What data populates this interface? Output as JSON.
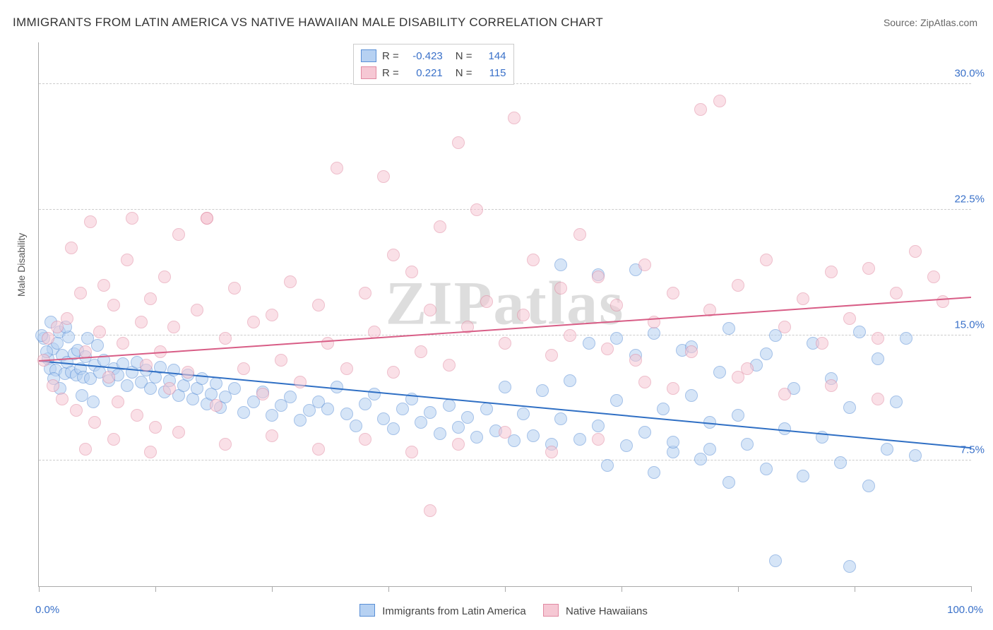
{
  "title": "IMMIGRANTS FROM LATIN AMERICA VS NATIVE HAWAIIAN MALE DISABILITY CORRELATION CHART",
  "source": "Source: ZipAtlas.com",
  "watermark": "ZIPatlas",
  "ylabel": "Male Disability",
  "chart": {
    "type": "scatter",
    "xlim": [
      0,
      100
    ],
    "ylim": [
      0,
      32.5
    ],
    "yticks": [
      7.5,
      15.0,
      22.5,
      30.0
    ],
    "ytick_labels": [
      "7.5%",
      "15.0%",
      "22.5%",
      "30.0%"
    ],
    "xticks": [
      0,
      12.5,
      25,
      37.5,
      50,
      62.5,
      75,
      87.5,
      100
    ],
    "xlim_labels": {
      "left": "0.0%",
      "right": "100.0%"
    },
    "background_color": "#ffffff",
    "grid_color": "#cccccc",
    "axis_color": "#aaaaaa",
    "label_color": "#3a71c9",
    "marker_radius": 8,
    "marker_opacity": 0.55,
    "marker_stroke_width": 1.2
  },
  "series": [
    {
      "name": "Immigrants from Latin America",
      "fill": "#b6d1f2",
      "stroke": "#5a8fd6",
      "trend_color": "#2f6fc4",
      "R": "-0.423",
      "N": "144",
      "trend": {
        "x1": 0,
        "y1": 13.4,
        "x2": 100,
        "y2": 8.2
      },
      "points": [
        [
          0.5,
          14.8
        ],
        [
          1,
          13.6
        ],
        [
          1.2,
          13.0
        ],
        [
          1.5,
          14.2
        ],
        [
          1.8,
          12.9
        ],
        [
          2,
          14.5
        ],
        [
          2.2,
          15.2
        ],
        [
          2.5,
          13.8
        ],
        [
          2.8,
          12.7
        ],
        [
          3,
          13.4
        ],
        [
          3.2,
          14.9
        ],
        [
          3.5,
          12.8
        ],
        [
          3.8,
          13.9
        ],
        [
          4,
          12.6
        ],
        [
          4.2,
          14.1
        ],
        [
          4.5,
          13.0
        ],
        [
          4.8,
          12.5
        ],
        [
          5,
          13.7
        ],
        [
          5.5,
          12.4
        ],
        [
          6,
          13.2
        ],
        [
          6.5,
          12.8
        ],
        [
          7,
          13.5
        ],
        [
          7.5,
          12.3
        ],
        [
          8,
          13.0
        ],
        [
          8.5,
          12.6
        ],
        [
          9,
          13.3
        ],
        [
          9.5,
          12.0
        ],
        [
          10,
          12.8
        ],
        [
          10.5,
          13.4
        ],
        [
          11,
          12.2
        ],
        [
          11.5,
          12.9
        ],
        [
          12,
          11.8
        ],
        [
          12.5,
          12.5
        ],
        [
          13,
          13.1
        ],
        [
          13.5,
          11.6
        ],
        [
          14,
          12.3
        ],
        [
          14.5,
          12.9
        ],
        [
          15,
          11.4
        ],
        [
          15.5,
          12.0
        ],
        [
          16,
          12.6
        ],
        [
          16.5,
          11.2
        ],
        [
          17,
          11.8
        ],
        [
          17.5,
          12.4
        ],
        [
          18,
          10.9
        ],
        [
          18.5,
          11.5
        ],
        [
          19,
          12.1
        ],
        [
          19.5,
          10.7
        ],
        [
          20,
          11.3
        ],
        [
          21,
          11.8
        ],
        [
          22,
          10.4
        ],
        [
          23,
          11.0
        ],
        [
          24,
          11.6
        ],
        [
          25,
          10.2
        ],
        [
          26,
          10.8
        ],
        [
          27,
          11.3
        ],
        [
          28,
          9.9
        ],
        [
          29,
          10.5
        ],
        [
          30,
          11.0
        ],
        [
          31,
          10.6
        ],
        [
          32,
          11.9
        ],
        [
          33,
          10.3
        ],
        [
          34,
          9.6
        ],
        [
          35,
          10.9
        ],
        [
          36,
          11.5
        ],
        [
          37,
          10.0
        ],
        [
          38,
          9.4
        ],
        [
          39,
          10.6
        ],
        [
          40,
          11.2
        ],
        [
          41,
          9.8
        ],
        [
          42,
          10.4
        ],
        [
          43,
          9.1
        ],
        [
          44,
          10.8
        ],
        [
          45,
          9.5
        ],
        [
          46,
          10.1
        ],
        [
          47,
          8.9
        ],
        [
          48,
          10.6
        ],
        [
          49,
          9.3
        ],
        [
          50,
          11.9
        ],
        [
          51,
          8.7
        ],
        [
          52,
          10.3
        ],
        [
          53,
          9.0
        ],
        [
          54,
          11.7
        ],
        [
          55,
          8.5
        ],
        [
          56,
          10.0
        ],
        [
          57,
          12.3
        ],
        [
          58,
          8.8
        ],
        [
          59,
          14.5
        ],
        [
          60,
          9.6
        ],
        [
          61,
          7.2
        ],
        [
          62,
          11.1
        ],
        [
          63,
          8.4
        ],
        [
          64,
          13.8
        ],
        [
          65,
          9.2
        ],
        [
          66,
          6.8
        ],
        [
          67,
          10.6
        ],
        [
          68,
          8.0
        ],
        [
          69,
          14.1
        ],
        [
          70,
          11.4
        ],
        [
          71,
          7.6
        ],
        [
          72,
          9.8
        ],
        [
          73,
          12.8
        ],
        [
          74,
          6.2
        ],
        [
          75,
          10.2
        ],
        [
          76,
          8.5
        ],
        [
          77,
          13.2
        ],
        [
          78,
          7.0
        ],
        [
          79,
          15.0
        ],
        [
          80,
          9.4
        ],
        [
          81,
          11.8
        ],
        [
          82,
          6.6
        ],
        [
          83,
          14.5
        ],
        [
          84,
          8.9
        ],
        [
          85,
          12.4
        ],
        [
          86,
          7.4
        ],
        [
          87,
          10.7
        ],
        [
          88,
          15.2
        ],
        [
          89,
          6.0
        ],
        [
          90,
          13.6
        ],
        [
          91,
          8.2
        ],
        [
          92,
          11.0
        ],
        [
          93,
          14.8
        ],
        [
          94,
          7.8
        ],
        [
          56,
          19.2
        ],
        [
          60,
          18.6
        ],
        [
          64,
          18.9
        ],
        [
          79,
          1.5
        ],
        [
          87,
          1.2
        ],
        [
          62,
          14.8
        ],
        [
          66,
          15.1
        ],
        [
          70,
          14.3
        ],
        [
          74,
          15.4
        ],
        [
          78,
          13.9
        ],
        [
          68,
          8.6
        ],
        [
          72,
          8.2
        ],
        [
          0.3,
          15.0
        ],
        [
          0.8,
          14.0
        ],
        [
          1.3,
          15.8
        ],
        [
          1.6,
          12.4
        ],
        [
          2.3,
          11.8
        ],
        [
          2.9,
          15.5
        ],
        [
          4.6,
          11.4
        ],
        [
          5.2,
          14.8
        ],
        [
          5.8,
          11.0
        ],
        [
          6.3,
          14.4
        ]
      ]
    },
    {
      "name": "Native Hawaiians",
      "fill": "#f6c8d4",
      "stroke": "#e18aa2",
      "trend_color": "#d85d86",
      "R": "0.221",
      "N": "115",
      "trend": {
        "x1": 0,
        "y1": 13.4,
        "x2": 100,
        "y2": 17.2
      },
      "points": [
        [
          0.5,
          13.5
        ],
        [
          1,
          14.8
        ],
        [
          1.5,
          12.0
        ],
        [
          2,
          15.5
        ],
        [
          2.5,
          11.2
        ],
        [
          3,
          16.0
        ],
        [
          3.5,
          20.2
        ],
        [
          4,
          10.5
        ],
        [
          4.5,
          17.5
        ],
        [
          5,
          14.0
        ],
        [
          5.5,
          21.8
        ],
        [
          6,
          9.8
        ],
        [
          6.5,
          15.2
        ],
        [
          7,
          18.0
        ],
        [
          7.5,
          12.5
        ],
        [
          8,
          16.8
        ],
        [
          8.5,
          11.0
        ],
        [
          9,
          14.5
        ],
        [
          9.5,
          19.5
        ],
        [
          10,
          22.0
        ],
        [
          10.5,
          10.2
        ],
        [
          11,
          15.8
        ],
        [
          11.5,
          13.2
        ],
        [
          12,
          17.2
        ],
        [
          12.5,
          9.5
        ],
        [
          13,
          14.0
        ],
        [
          13.5,
          18.5
        ],
        [
          14,
          11.8
        ],
        [
          14.5,
          15.5
        ],
        [
          15,
          21.0
        ],
        [
          16,
          12.8
        ],
        [
          17,
          16.5
        ],
        [
          18,
          22.0
        ],
        [
          19,
          10.8
        ],
        [
          20,
          14.8
        ],
        [
          21,
          17.8
        ],
        [
          22,
          13.0
        ],
        [
          23,
          15.8
        ],
        [
          24,
          11.5
        ],
        [
          25,
          16.2
        ],
        [
          26,
          13.5
        ],
        [
          27,
          18.2
        ],
        [
          28,
          12.2
        ],
        [
          30,
          16.8
        ],
        [
          31,
          14.5
        ],
        [
          32,
          25.0
        ],
        [
          33,
          13.0
        ],
        [
          35,
          17.5
        ],
        [
          36,
          15.2
        ],
        [
          37,
          24.5
        ],
        [
          38,
          12.8
        ],
        [
          40,
          18.8
        ],
        [
          41,
          14.0
        ],
        [
          42,
          16.5
        ],
        [
          43,
          21.5
        ],
        [
          44,
          13.2
        ],
        [
          45,
          26.5
        ],
        [
          46,
          15.5
        ],
        [
          47,
          22.5
        ],
        [
          48,
          17.0
        ],
        [
          50,
          14.5
        ],
        [
          51,
          28.0
        ],
        [
          52,
          16.2
        ],
        [
          53,
          19.5
        ],
        [
          55,
          13.8
        ],
        [
          56,
          17.8
        ],
        [
          57,
          15.0
        ],
        [
          58,
          21.0
        ],
        [
          60,
          18.5
        ],
        [
          61,
          14.2
        ],
        [
          62,
          16.8
        ],
        [
          64,
          13.5
        ],
        [
          65,
          19.2
        ],
        [
          66,
          15.8
        ],
        [
          68,
          17.5
        ],
        [
          70,
          14.0
        ],
        [
          71,
          28.5
        ],
        [
          72,
          16.5
        ],
        [
          73,
          29.0
        ],
        [
          75,
          18.0
        ],
        [
          76,
          13.0
        ],
        [
          78,
          19.5
        ],
        [
          80,
          15.5
        ],
        [
          82,
          17.2
        ],
        [
          84,
          14.5
        ],
        [
          85,
          18.8
        ],
        [
          87,
          16.0
        ],
        [
          89,
          19.0
        ],
        [
          90,
          14.8
        ],
        [
          92,
          17.5
        ],
        [
          94,
          20.0
        ],
        [
          96,
          18.5
        ],
        [
          97,
          17.0
        ],
        [
          42,
          4.5
        ],
        [
          5,
          8.2
        ],
        [
          8,
          8.8
        ],
        [
          12,
          8.0
        ],
        [
          15,
          9.2
        ],
        [
          20,
          8.5
        ],
        [
          25,
          9.0
        ],
        [
          30,
          8.2
        ],
        [
          35,
          8.8
        ],
        [
          40,
          8.0
        ],
        [
          45,
          8.5
        ],
        [
          50,
          9.2
        ],
        [
          55,
          8.0
        ],
        [
          60,
          8.8
        ],
        [
          65,
          12.2
        ],
        [
          68,
          11.8
        ],
        [
          75,
          12.5
        ],
        [
          80,
          11.5
        ],
        [
          85,
          12.0
        ],
        [
          90,
          11.2
        ],
        [
          18,
          22.0
        ],
        [
          38,
          19.8
        ]
      ]
    }
  ],
  "legend_bottom": [
    {
      "label": "Immigrants from Latin America",
      "fill": "#b6d1f2",
      "stroke": "#5a8fd6"
    },
    {
      "label": "Native Hawaiians",
      "fill": "#f6c8d4",
      "stroke": "#e18aa2"
    }
  ]
}
